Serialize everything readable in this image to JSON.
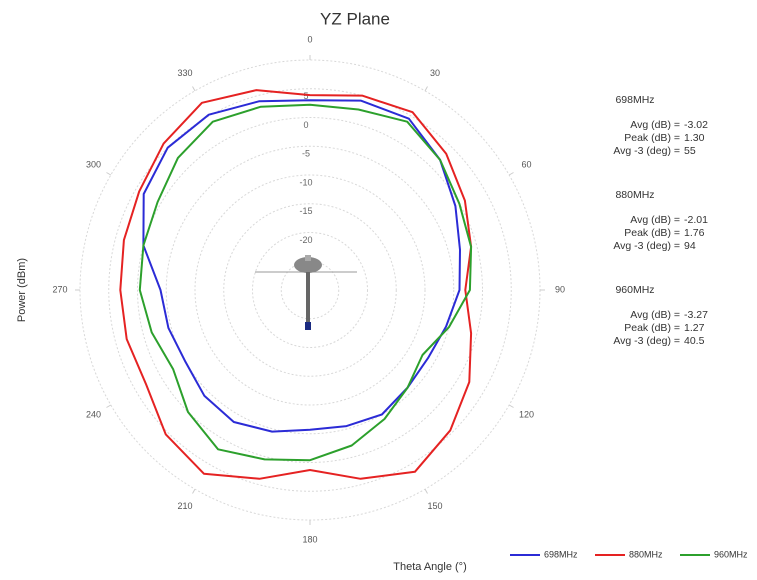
{
  "chart_data": {
    "type": "polar",
    "title": "YZ Plane",
    "y_label": "Power (dBm)",
    "x_label": "Theta Angle (°)",
    "x": [
      0,
      15,
      30,
      45,
      60,
      75,
      90,
      105,
      120,
      135,
      150,
      165,
      180,
      195,
      210,
      225,
      240,
      255,
      270,
      285,
      300,
      315,
      330,
      345
    ],
    "xticks": [
      0,
      30,
      60,
      90,
      120,
      150,
      180,
      210,
      240,
      270,
      300,
      330
    ],
    "ylim": [
      -30,
      10
    ],
    "yticks": [
      -25,
      -20,
      -15,
      -10,
      -5,
      0,
      5
    ],
    "series": [
      {
        "name": "698MHz",
        "color": "#2b2bd6",
        "values": [
          3,
          4.1,
          4.4,
          2,
          -0.8,
          -3,
          -4,
          -5.5,
          -6.3,
          -6,
          -5,
          -5.5,
          -5.7,
          -4.5,
          -3.5,
          -4,
          -5,
          -4.5,
          -4,
          0,
          3.4,
          5,
          5.2,
          4
        ]
      },
      {
        "name": "880MHz",
        "color": "#e52222",
        "values": [
          3.9,
          5,
          5.7,
          3.5,
          1.1,
          -1,
          -3,
          -1,
          2,
          4.5,
          6.5,
          4,
          1.3,
          4,
          6.9,
          5.5,
          2.9,
          3,
          3,
          3.5,
          4.3,
          6,
          7.6,
          6
        ]
      },
      {
        "name": "960MHz",
        "color": "#2ca02c",
        "values": [
          2.2,
          2.5,
          3.8,
          2,
          0,
          -1,
          -2.2,
          -5,
          -7.4,
          -6,
          -4.1,
          -2,
          -0.4,
          0.5,
          2,
          0,
          -2.5,
          -1.5,
          -0.4,
          0,
          0.6,
          2.5,
          3.8,
          3
        ]
      }
    ],
    "stats": [
      {
        "title": "698MHz",
        "rows": [
          [
            "Avg (dB) =",
            "-3.02"
          ],
          [
            "Peak (dB) =",
            "1.30"
          ],
          [
            "Avg -3 (deg) =",
            "55"
          ]
        ]
      },
      {
        "title": "880MHz",
        "rows": [
          [
            "Avg (dB) =",
            "-2.01"
          ],
          [
            "Peak (dB) =",
            "1.76"
          ],
          [
            "Avg -3 (deg) =",
            "94"
          ]
        ]
      },
      {
        "title": "960MHz",
        "rows": [
          [
            "Avg (dB) =",
            "-3.27"
          ],
          [
            "Peak (dB) =",
            "1.27"
          ],
          [
            "Avg -3 (deg) =",
            "40.5"
          ]
        ]
      }
    ]
  }
}
